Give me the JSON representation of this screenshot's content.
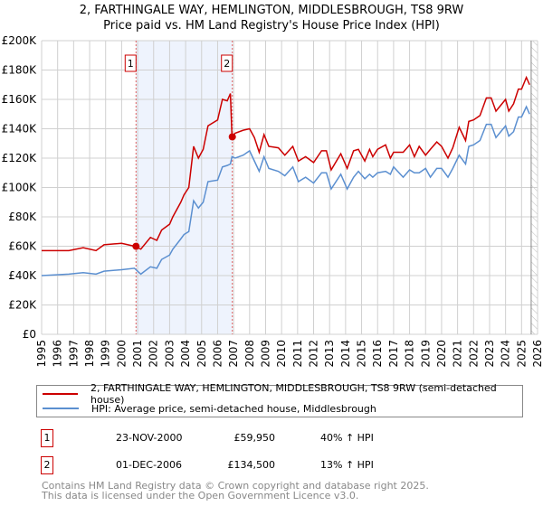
{
  "chart_data": {
    "type": "line",
    "title": "2, FARTHINGALE WAY, HEMLINGTON, MIDDLESBROUGH, TS8 9RW",
    "subtitle": "Price paid vs. HM Land Registry's House Price Index (HPI)",
    "xlim": [
      1995,
      2026
    ],
    "ylim": [
      0,
      200000
    ],
    "x_ticks": [
      "1995",
      "1996",
      "1997",
      "1998",
      "1999",
      "2000",
      "2001",
      "2002",
      "2003",
      "2004",
      "2005",
      "2006",
      "2007",
      "2008",
      "2009",
      "2010",
      "2011",
      "2012",
      "2013",
      "2014",
      "2015",
      "2016",
      "2017",
      "2018",
      "2019",
      "2020",
      "2021",
      "2022",
      "2023",
      "2024",
      "2025",
      "2026"
    ],
    "y_ticks": [
      {
        "v": 0,
        "label": "£0"
      },
      {
        "v": 20000,
        "label": "£20K"
      },
      {
        "v": 40000,
        "label": "£40K"
      },
      {
        "v": 60000,
        "label": "£60K"
      },
      {
        "v": 80000,
        "label": "£80K"
      },
      {
        "v": 100000,
        "label": "£100K"
      },
      {
        "v": 120000,
        "label": "£120K"
      },
      {
        "v": 140000,
        "label": "£140K"
      },
      {
        "v": 160000,
        "label": "£160K"
      },
      {
        "v": 180000,
        "label": "£180K"
      },
      {
        "v": 200000,
        "label": "£200K"
      }
    ],
    "grid": true,
    "shaded_range": [
      2000.9,
      2006.92
    ],
    "forecast_hatch_from": 2025.6,
    "series": [
      {
        "name": "2, FARTHINGALE WAY, HEMLINGTON, MIDDLESBROUGH, TS8 9RW (semi-detached house)",
        "color": "#cc0000",
        "points": [
          [
            1995,
            57
          ],
          [
            1996.7,
            57
          ],
          [
            1997.6,
            59
          ],
          [
            1998.4,
            57
          ],
          [
            1998.9,
            61
          ],
          [
            2000,
            62
          ],
          [
            2000.8,
            60
          ],
          [
            2001.2,
            58
          ],
          [
            2001.8,
            66
          ],
          [
            2002.2,
            64
          ],
          [
            2002.5,
            71
          ],
          [
            2003,
            75
          ],
          [
            2003.2,
            80
          ],
          [
            2003.7,
            90
          ],
          [
            2003.9,
            95
          ],
          [
            2004.2,
            100
          ],
          [
            2004.5,
            128
          ],
          [
            2004.8,
            120
          ],
          [
            2005.1,
            126
          ],
          [
            2005.4,
            142
          ],
          [
            2006,
            146
          ],
          [
            2006.3,
            160
          ],
          [
            2006.6,
            159
          ],
          [
            2006.8,
            164
          ],
          [
            2006.9,
            134.5
          ],
          [
            2007.1,
            137
          ],
          [
            2007.6,
            139
          ],
          [
            2008,
            140
          ],
          [
            2008.3,
            134
          ],
          [
            2008.6,
            124
          ],
          [
            2008.9,
            136
          ],
          [
            2009.2,
            128
          ],
          [
            2009.8,
            127
          ],
          [
            2010.2,
            122
          ],
          [
            2010.7,
            128
          ],
          [
            2011.05,
            118
          ],
          [
            2011.5,
            121
          ],
          [
            2012,
            117
          ],
          [
            2012.5,
            125
          ],
          [
            2012.8,
            125
          ],
          [
            2013.1,
            112
          ],
          [
            2013.7,
            123
          ],
          [
            2014.1,
            113
          ],
          [
            2014.5,
            125
          ],
          [
            2014.8,
            126
          ],
          [
            2015.2,
            118
          ],
          [
            2015.5,
            126
          ],
          [
            2015.7,
            121
          ],
          [
            2016,
            126
          ],
          [
            2016.5,
            129
          ],
          [
            2016.8,
            120
          ],
          [
            2017,
            124
          ],
          [
            2017.6,
            124
          ],
          [
            2018,
            129
          ],
          [
            2018.3,
            121
          ],
          [
            2018.6,
            128
          ],
          [
            2019,
            122
          ],
          [
            2019.3,
            126
          ],
          [
            2019.7,
            131
          ],
          [
            2020,
            128
          ],
          [
            2020.4,
            120
          ],
          [
            2020.7,
            127
          ],
          [
            2021.1,
            141
          ],
          [
            2021.5,
            132
          ],
          [
            2021.7,
            145
          ],
          [
            2022,
            146
          ],
          [
            2022.4,
            149
          ],
          [
            2022.8,
            161
          ],
          [
            2023.1,
            161
          ],
          [
            2023.4,
            152
          ],
          [
            2023.7,
            156
          ],
          [
            2024,
            160
          ],
          [
            2024.2,
            152
          ],
          [
            2024.5,
            157
          ],
          [
            2024.8,
            167
          ],
          [
            2025,
            167
          ],
          [
            2025.3,
            175
          ],
          [
            2025.5,
            170
          ]
        ]
      },
      {
        "name": "HPI: Average price, semi-detached house, Middlesbrough",
        "color": "#5b8fd0",
        "points": [
          [
            1995,
            40
          ],
          [
            1996.7,
            41
          ],
          [
            1997.6,
            42
          ],
          [
            1998.4,
            41
          ],
          [
            1998.9,
            43
          ],
          [
            2000,
            44
          ],
          [
            2000.8,
            45
          ],
          [
            2001.2,
            41
          ],
          [
            2001.8,
            46
          ],
          [
            2002.2,
            45
          ],
          [
            2002.5,
            51
          ],
          [
            2003,
            54
          ],
          [
            2003.2,
            58
          ],
          [
            2003.7,
            65
          ],
          [
            2003.9,
            68
          ],
          [
            2004.2,
            70
          ],
          [
            2004.5,
            91
          ],
          [
            2004.8,
            86
          ],
          [
            2005.1,
            90
          ],
          [
            2005.4,
            104
          ],
          [
            2006,
            105
          ],
          [
            2006.3,
            114
          ],
          [
            2006.6,
            115
          ],
          [
            2006.8,
            116
          ],
          [
            2006.9,
            121
          ],
          [
            2007.1,
            120
          ],
          [
            2007.6,
            122
          ],
          [
            2008,
            125
          ],
          [
            2008.3,
            118
          ],
          [
            2008.6,
            111
          ],
          [
            2008.9,
            121
          ],
          [
            2009.2,
            113
          ],
          [
            2009.8,
            111
          ],
          [
            2010.2,
            108
          ],
          [
            2010.7,
            114
          ],
          [
            2011.05,
            104
          ],
          [
            2011.5,
            107
          ],
          [
            2012,
            103
          ],
          [
            2012.5,
            110
          ],
          [
            2012.8,
            110
          ],
          [
            2013.1,
            99
          ],
          [
            2013.7,
            109
          ],
          [
            2014.1,
            99
          ],
          [
            2014.5,
            107
          ],
          [
            2014.8,
            111
          ],
          [
            2015.2,
            106
          ],
          [
            2015.5,
            109
          ],
          [
            2015.7,
            107
          ],
          [
            2016,
            110
          ],
          [
            2016.5,
            111
          ],
          [
            2016.8,
            109
          ],
          [
            2017,
            114
          ],
          [
            2017.6,
            107
          ],
          [
            2018,
            112
          ],
          [
            2018.3,
            110
          ],
          [
            2018.6,
            110
          ],
          [
            2019,
            113
          ],
          [
            2019.3,
            107
          ],
          [
            2019.7,
            113
          ],
          [
            2020,
            113
          ],
          [
            2020.4,
            107
          ],
          [
            2020.7,
            113
          ],
          [
            2021.1,
            122
          ],
          [
            2021.5,
            116
          ],
          [
            2021.7,
            128
          ],
          [
            2022,
            129
          ],
          [
            2022.4,
            132
          ],
          [
            2022.8,
            143
          ],
          [
            2023.1,
            143
          ],
          [
            2023.4,
            134
          ],
          [
            2023.7,
            138
          ],
          [
            2024,
            142
          ],
          [
            2024.2,
            135
          ],
          [
            2024.5,
            138
          ],
          [
            2024.8,
            148
          ],
          [
            2025,
            148
          ],
          [
            2025.3,
            155
          ],
          [
            2025.5,
            150
          ]
        ]
      }
    ],
    "sales": [
      {
        "id": "1",
        "x": 2000.9,
        "value": 59950,
        "date": "23-NOV-2000",
        "price": "£59,950",
        "hpi": "40% ↑ HPI"
      },
      {
        "id": "2",
        "x": 2006.92,
        "value": 134500,
        "date": "01-DEC-2006",
        "price": "£134,500",
        "hpi": "13% ↑ HPI"
      }
    ]
  },
  "footer": {
    "line1": "Contains HM Land Registry data © Crown copyright and database right 2025.",
    "line2": "This data is licensed under the Open Government Licence v3.0."
  }
}
